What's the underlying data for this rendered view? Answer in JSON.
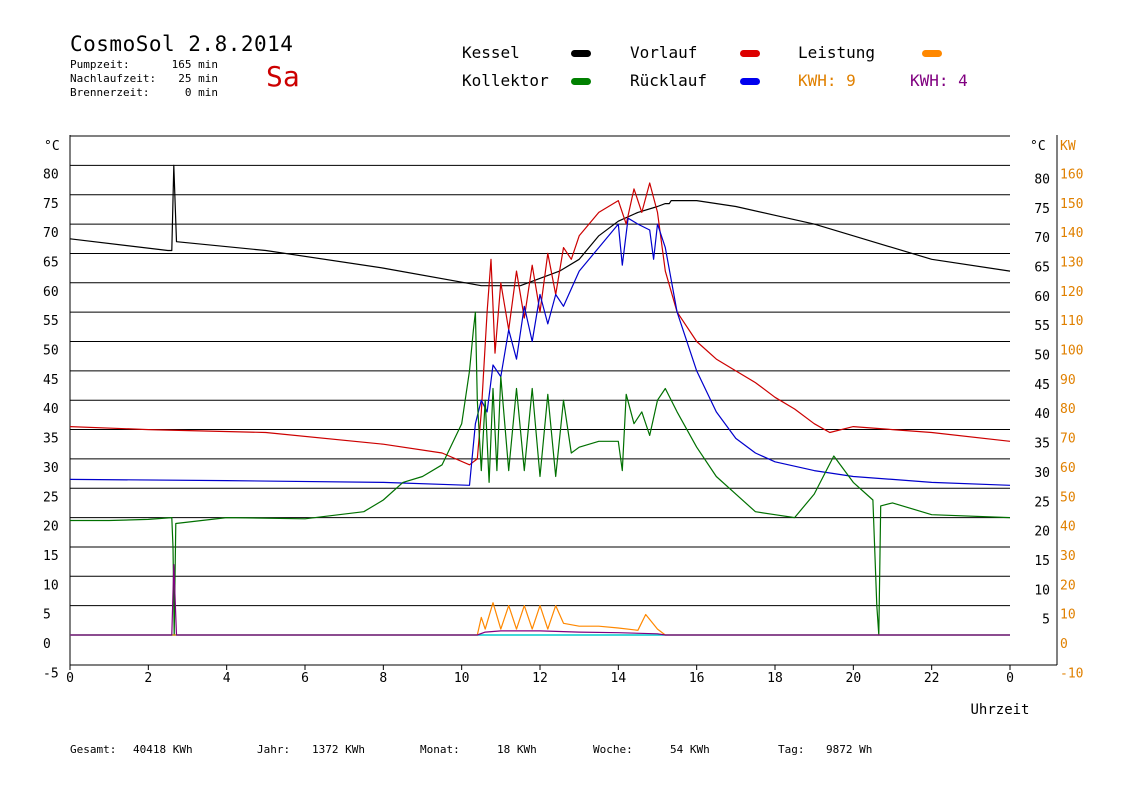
{
  "header": {
    "title": "CosmoSol 2.8.2014",
    "day": "Sa",
    "stats": [
      {
        "label": "Pumpzeit:",
        "value": "165 min"
      },
      {
        "label": "Nachlaufzeit:",
        "value": "25 min"
      },
      {
        "label": "Brennerzeit:",
        "value": "0 min"
      }
    ]
  },
  "legend": {
    "kessel": "Kessel",
    "vorlauf": "Vorlauf",
    "leistung": "Leistung",
    "kollektor": "Kollektor",
    "ruecklauf": "Rücklauf",
    "kwh1": "KWH: 9",
    "kwh2": "KWH: 4"
  },
  "colors": {
    "kessel": "#000000",
    "vorlauf": "#cc0000",
    "leistung": "#ff8800",
    "kollektor": "#007000",
    "ruecklauf": "#0000cc",
    "kwh2": "#800080",
    "axis_right2": "#e08000",
    "zero_line": "#00cccc"
  },
  "footer": [
    {
      "label": "Gesamt:",
      "value": "40418 KWh"
    },
    {
      "label": "Jahr:",
      "value": "1372 KWh"
    },
    {
      "label": "Monat:",
      "value": "18 KWh"
    },
    {
      "label": "Woche:",
      "value": "54 KWh"
    },
    {
      "label": "Tag:",
      "value": "9872 Wh"
    }
  ],
  "chart_data": {
    "type": "line",
    "xlabel": "Uhrzeit",
    "ylabel_left": "°C",
    "ylabel_right": "°C",
    "ylabel_right2": "KW",
    "xlim": [
      0,
      24
    ],
    "ylim": [
      -5,
      85
    ],
    "ylim_right2": [
      -10,
      170
    ],
    "grid": true,
    "legend_position": "top",
    "x_ticks": [
      "0",
      "2",
      "4",
      "6",
      "8",
      "10",
      "12",
      "14",
      "16",
      "18",
      "20",
      "22",
      "0"
    ],
    "y_ticks_left": [
      "80",
      "75",
      "70",
      "65",
      "60",
      "55",
      "50",
      "45",
      "40",
      "35",
      "30",
      "25",
      "20",
      "15",
      "10",
      "5",
      "0",
      "-5"
    ],
    "y_ticks_right": [
      "80",
      "75",
      "70",
      "65",
      "60",
      "55",
      "50",
      "45",
      "40",
      "35",
      "30",
      "25",
      "20",
      "15",
      "10",
      "5"
    ],
    "y_ticks_right2": [
      "160",
      "150",
      "140",
      "130",
      "120",
      "110",
      "100",
      "90",
      "80",
      "70",
      "60",
      "50",
      "40",
      "30",
      "20",
      "10",
      "0",
      "-10"
    ],
    "series": [
      {
        "name": "Kessel",
        "color": "#000000",
        "points": [
          [
            0,
            67.5
          ],
          [
            2.5,
            65.5
          ],
          [
            2.6,
            65.5
          ],
          [
            2.65,
            80
          ],
          [
            2.72,
            67
          ],
          [
            5,
            65.5
          ],
          [
            8,
            62.5
          ],
          [
            10.5,
            59.5
          ],
          [
            11.5,
            59.5
          ],
          [
            12.5,
            62
          ],
          [
            13,
            64
          ],
          [
            13.5,
            68
          ],
          [
            14,
            70.5
          ],
          [
            14.5,
            72
          ],
          [
            15,
            73
          ],
          [
            15.2,
            73.5
          ],
          [
            15.3,
            73.5
          ],
          [
            15.35,
            74
          ],
          [
            16,
            74
          ],
          [
            17,
            73
          ],
          [
            18,
            71.5
          ],
          [
            19,
            70
          ],
          [
            20,
            68
          ],
          [
            21,
            66
          ],
          [
            22,
            64
          ],
          [
            24,
            62
          ]
        ]
      },
      {
        "name": "Vorlauf",
        "color": "#cc0000",
        "points": [
          [
            0,
            35.5
          ],
          [
            2,
            35
          ],
          [
            5,
            34.5
          ],
          [
            8,
            32.5
          ],
          [
            9.5,
            31
          ],
          [
            10.2,
            29
          ],
          [
            10.4,
            30
          ],
          [
            10.5,
            38
          ],
          [
            10.65,
            55
          ],
          [
            10.75,
            64
          ],
          [
            10.85,
            48
          ],
          [
            11,
            60
          ],
          [
            11.2,
            52
          ],
          [
            11.4,
            62
          ],
          [
            11.6,
            54
          ],
          [
            11.8,
            63
          ],
          [
            12,
            55
          ],
          [
            12.2,
            65
          ],
          [
            12.4,
            58
          ],
          [
            12.6,
            66
          ],
          [
            12.8,
            64
          ],
          [
            13,
            68
          ],
          [
            13.5,
            72
          ],
          [
            14,
            74
          ],
          [
            14.2,
            70
          ],
          [
            14.4,
            76
          ],
          [
            14.6,
            72
          ],
          [
            14.8,
            77
          ],
          [
            15,
            72
          ],
          [
            15.2,
            62
          ],
          [
            15.5,
            55
          ],
          [
            16,
            50
          ],
          [
            16.5,
            47
          ],
          [
            17,
            45
          ],
          [
            17.5,
            43
          ],
          [
            18,
            40.5
          ],
          [
            18.5,
            38.5
          ],
          [
            19,
            36
          ],
          [
            19.4,
            34.5
          ],
          [
            20,
            35.5
          ],
          [
            21,
            35
          ],
          [
            22,
            34.5
          ],
          [
            24,
            33
          ]
        ]
      },
      {
        "name": "Rücklauf",
        "color": "#0000cc",
        "points": [
          [
            0,
            26.5
          ],
          [
            4,
            26.3
          ],
          [
            8,
            26
          ],
          [
            10.2,
            25.5
          ],
          [
            10.35,
            36
          ],
          [
            10.5,
            40
          ],
          [
            10.65,
            38
          ],
          [
            10.8,
            46
          ],
          [
            11,
            44
          ],
          [
            11.2,
            52
          ],
          [
            11.4,
            47
          ],
          [
            11.6,
            56
          ],
          [
            11.8,
            50
          ],
          [
            12,
            58
          ],
          [
            12.2,
            53
          ],
          [
            12.4,
            58
          ],
          [
            12.6,
            56
          ],
          [
            13,
            62
          ],
          [
            13.5,
            66
          ],
          [
            14,
            70
          ],
          [
            14.1,
            63
          ],
          [
            14.25,
            71
          ],
          [
            14.5,
            70
          ],
          [
            14.8,
            69
          ],
          [
            14.9,
            64
          ],
          [
            15,
            70
          ],
          [
            15.2,
            66
          ],
          [
            15.5,
            55
          ],
          [
            16,
            45
          ],
          [
            16.5,
            38
          ],
          [
            17,
            33.5
          ],
          [
            17.5,
            31
          ],
          [
            18,
            29.5
          ],
          [
            19,
            28
          ],
          [
            20,
            27
          ],
          [
            21,
            26.5
          ],
          [
            22,
            26
          ],
          [
            24,
            25.5
          ]
        ]
      },
      {
        "name": "Kollektor",
        "color": "#007000",
        "points": [
          [
            0,
            19.5
          ],
          [
            1,
            19.5
          ],
          [
            2,
            19.7
          ],
          [
            2.6,
            20
          ],
          [
            2.63,
            15
          ],
          [
            2.66,
            0
          ],
          [
            2.7,
            19
          ],
          [
            4,
            20
          ],
          [
            6,
            19.8
          ],
          [
            7.5,
            21
          ],
          [
            8,
            23
          ],
          [
            8.5,
            26
          ],
          [
            9,
            27
          ],
          [
            9.5,
            29
          ],
          [
            10,
            36
          ],
          [
            10.2,
            45
          ],
          [
            10.3,
            52
          ],
          [
            10.35,
            55
          ],
          [
            10.4,
            40
          ],
          [
            10.5,
            28
          ],
          [
            10.6,
            40
          ],
          [
            10.7,
            26
          ],
          [
            10.8,
            42
          ],
          [
            10.9,
            28
          ],
          [
            11,
            44
          ],
          [
            11.2,
            28
          ],
          [
            11.4,
            42
          ],
          [
            11.6,
            28
          ],
          [
            11.8,
            42
          ],
          [
            12,
            27
          ],
          [
            12.2,
            41
          ],
          [
            12.4,
            27
          ],
          [
            12.6,
            40
          ],
          [
            12.8,
            31
          ],
          [
            13,
            32
          ],
          [
            13.5,
            33
          ],
          [
            14,
            33
          ],
          [
            14.1,
            28
          ],
          [
            14.2,
            41
          ],
          [
            14.4,
            36
          ],
          [
            14.6,
            38
          ],
          [
            14.8,
            34
          ],
          [
            15,
            40
          ],
          [
            15.2,
            42
          ],
          [
            15.5,
            38
          ],
          [
            16,
            32
          ],
          [
            16.5,
            27
          ],
          [
            17,
            24
          ],
          [
            17.5,
            21
          ],
          [
            18,
            20.5
          ],
          [
            18.5,
            20
          ],
          [
            19,
            24
          ],
          [
            19.5,
            30.5
          ],
          [
            20,
            26
          ],
          [
            20.5,
            23
          ],
          [
            20.6,
            5
          ],
          [
            20.65,
            0
          ],
          [
            20.7,
            22
          ],
          [
            21,
            22.5
          ],
          [
            22,
            20.5
          ],
          [
            24,
            20
          ]
        ]
      },
      {
        "name": "Leistung",
        "color": "#ff8800",
        "points": [
          [
            0,
            0
          ],
          [
            10.4,
            0
          ],
          [
            10.5,
            3
          ],
          [
            10.6,
            1
          ],
          [
            10.8,
            5.5
          ],
          [
            11,
            1
          ],
          [
            11.2,
            5
          ],
          [
            11.4,
            1
          ],
          [
            11.6,
            5
          ],
          [
            11.8,
            1
          ],
          [
            12,
            5
          ],
          [
            12.2,
            1
          ],
          [
            12.4,
            5
          ],
          [
            12.6,
            2
          ],
          [
            13,
            1.5
          ],
          [
            13.5,
            1.5
          ],
          [
            14,
            1.2
          ],
          [
            14.5,
            0.8
          ],
          [
            14.7,
            3.5
          ],
          [
            15,
            1
          ],
          [
            15.2,
            0
          ],
          [
            24,
            0
          ]
        ]
      },
      {
        "name": "KWH: 4",
        "color": "#800080",
        "points": [
          [
            0,
            0
          ],
          [
            2.6,
            0
          ],
          [
            2.65,
            12
          ],
          [
            2.72,
            0
          ],
          [
            10.4,
            0
          ],
          [
            10.6,
            0.5
          ],
          [
            11,
            0.7
          ],
          [
            12,
            0.7
          ],
          [
            13,
            0.5
          ],
          [
            14,
            0.4
          ],
          [
            15,
            0.2
          ],
          [
            15.2,
            0
          ],
          [
            24,
            0
          ]
        ]
      }
    ]
  }
}
